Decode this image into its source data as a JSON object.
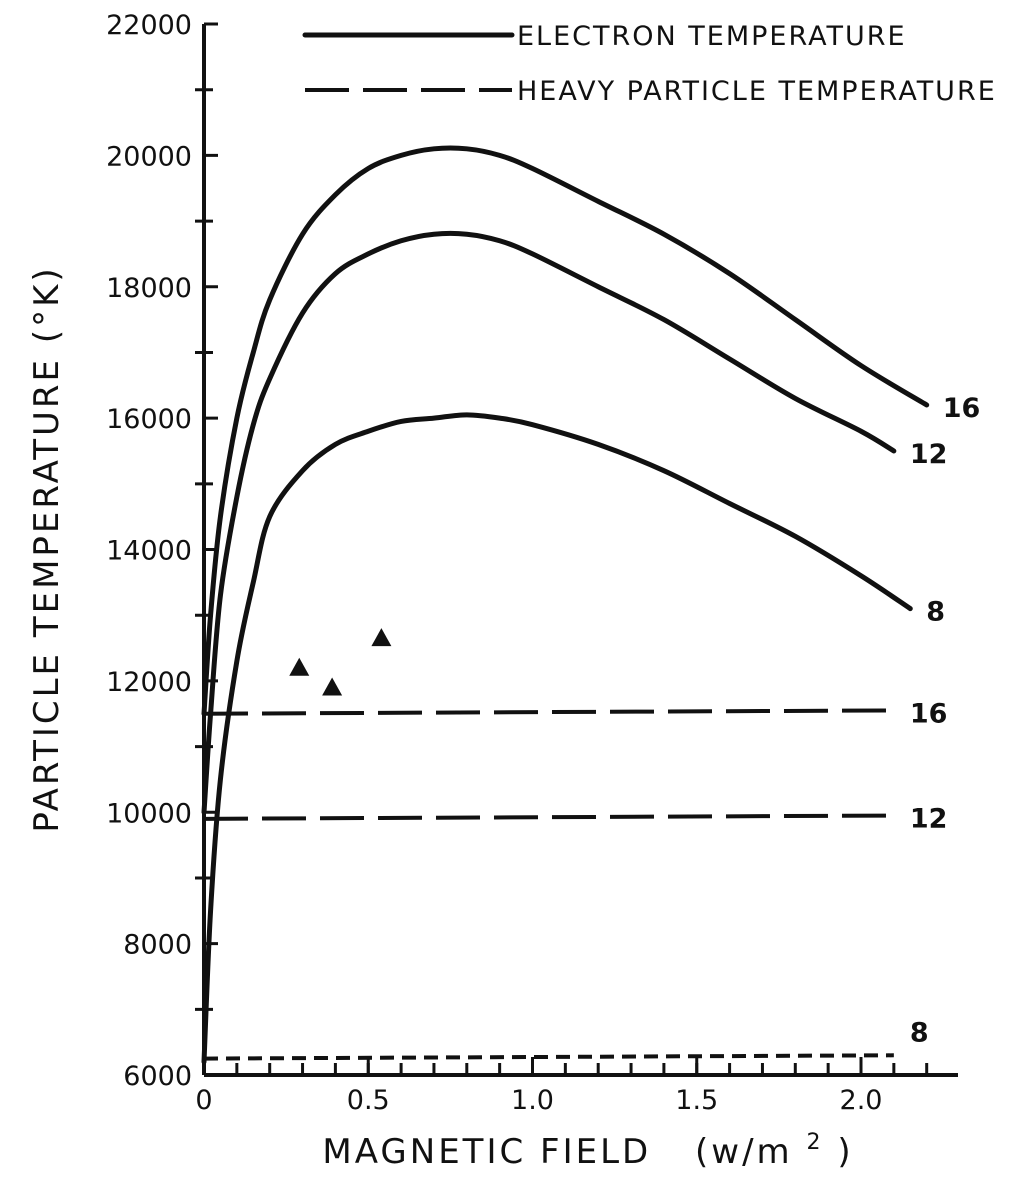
{
  "chart_data": {
    "type": "line",
    "title": "",
    "xlabel": "MAGNETIC FIELD",
    "xlabel_unit_prefix": "(w/m",
    "xlabel_unit_sup": "2",
    "xlabel_unit_suffix": ")",
    "ylabel": "PARTICLE TEMPERATURE (°K)",
    "xlim": [
      0,
      2.25
    ],
    "ylim": [
      6000,
      22000
    ],
    "x_ticks": [
      {
        "value": 0,
        "label": "0"
      },
      {
        "value": 0.5,
        "label": "0.5"
      },
      {
        "value": 1.0,
        "label": "1.0"
      },
      {
        "value": 1.5,
        "label": "1.5"
      },
      {
        "value": 2.0,
        "label": "2.0"
      }
    ],
    "y_ticks": [
      {
        "value": 6000,
        "label": "6000"
      },
      {
        "value": 8000,
        "label": "8000"
      },
      {
        "value": 10000,
        "label": "10000"
      },
      {
        "value": 12000,
        "label": "12000"
      },
      {
        "value": 14000,
        "label": "14000"
      },
      {
        "value": 16000,
        "label": "16000"
      },
      {
        "value": 18000,
        "label": "18000"
      },
      {
        "value": 20000,
        "label": "20000"
      },
      {
        "value": 22000,
        "label": "22000"
      }
    ],
    "legend": [
      {
        "label": "ELECTRON TEMPERATURE",
        "style": "solid"
      },
      {
        "label": "HEAVY PARTICLE TEMPERATURE",
        "style": "dashed"
      }
    ],
    "legend_position": "top-right",
    "grid": false,
    "series": [
      {
        "label": "16",
        "style": "solid",
        "points": [
          [
            0,
            11500
          ],
          [
            0.02,
            13000
          ],
          [
            0.05,
            14500
          ],
          [
            0.1,
            16000
          ],
          [
            0.15,
            17000
          ],
          [
            0.2,
            17800
          ],
          [
            0.3,
            18800
          ],
          [
            0.4,
            19400
          ],
          [
            0.5,
            19800
          ],
          [
            0.6,
            20000
          ],
          [
            0.7,
            20100
          ],
          [
            0.8,
            20100
          ],
          [
            0.9,
            20000
          ],
          [
            1.0,
            19800
          ],
          [
            1.2,
            19300
          ],
          [
            1.4,
            18800
          ],
          [
            1.6,
            18200
          ],
          [
            1.8,
            17500
          ],
          [
            2.0,
            16800
          ],
          [
            2.2,
            16200
          ]
        ]
      },
      {
        "label": "12",
        "style": "solid",
        "points": [
          [
            0,
            10000
          ],
          [
            0.02,
            11500
          ],
          [
            0.05,
            13300
          ],
          [
            0.1,
            14800
          ],
          [
            0.15,
            15900
          ],
          [
            0.2,
            16600
          ],
          [
            0.3,
            17600
          ],
          [
            0.4,
            18200
          ],
          [
            0.5,
            18500
          ],
          [
            0.6,
            18700
          ],
          [
            0.7,
            18800
          ],
          [
            0.8,
            18800
          ],
          [
            0.9,
            18700
          ],
          [
            1.0,
            18500
          ],
          [
            1.2,
            18000
          ],
          [
            1.4,
            17500
          ],
          [
            1.6,
            16900
          ],
          [
            1.8,
            16300
          ],
          [
            2.0,
            15800
          ],
          [
            2.1,
            15500
          ]
        ]
      },
      {
        "label": "8",
        "style": "solid",
        "points": [
          [
            0,
            6200
          ],
          [
            0.02,
            8500
          ],
          [
            0.05,
            10500
          ],
          [
            0.1,
            12300
          ],
          [
            0.15,
            13500
          ],
          [
            0.2,
            14500
          ],
          [
            0.3,
            15200
          ],
          [
            0.4,
            15600
          ],
          [
            0.5,
            15800
          ],
          [
            0.6,
            15950
          ],
          [
            0.7,
            16000
          ],
          [
            0.8,
            16050
          ],
          [
            0.9,
            16000
          ],
          [
            1.0,
            15900
          ],
          [
            1.2,
            15600
          ],
          [
            1.4,
            15200
          ],
          [
            1.6,
            14700
          ],
          [
            1.8,
            14200
          ],
          [
            2.0,
            13600
          ],
          [
            2.15,
            13100
          ]
        ]
      },
      {
        "label": "16",
        "style": "dashed",
        "points": [
          [
            0,
            11500
          ],
          [
            2.1,
            11550
          ]
        ]
      },
      {
        "label": "12",
        "style": "dashed",
        "points": [
          [
            0,
            9900
          ],
          [
            2.1,
            9950
          ]
        ]
      },
      {
        "label": "8",
        "style": "dashed-short",
        "points": [
          [
            0,
            6250
          ],
          [
            2.1,
            6300
          ]
        ]
      }
    ],
    "markers": [
      {
        "x": 0.29,
        "y": 12200,
        "shape": "triangle"
      },
      {
        "x": 0.39,
        "y": 11900,
        "shape": "triangle"
      },
      {
        "x": 0.54,
        "y": 12650,
        "shape": "triangle"
      }
    ]
  }
}
